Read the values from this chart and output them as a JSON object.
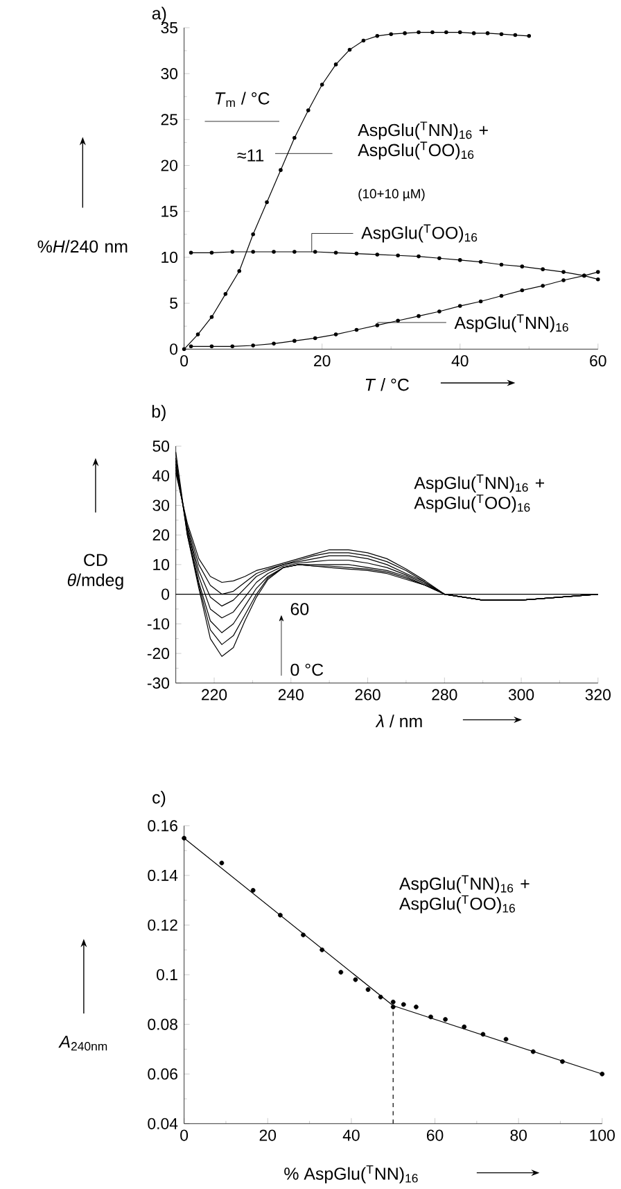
{
  "chart_data": [
    {
      "type": "line",
      "title": "a)",
      "xlabel": "*T* / °C",
      "ylabel": "%*H*/240 nm",
      "xlim": [
        0,
        60
      ],
      "ylim": [
        0,
        35
      ],
      "xticks": [
        0,
        20,
        40,
        60
      ],
      "yticks": [
        0,
        5,
        10,
        15,
        20,
        25,
        30,
        35
      ],
      "marker": "circle",
      "line_style": "solid",
      "legend": "bottom right",
      "annotations": [
        "*T*$_{m}$ / °C",
        "≈11",
        "(10+10 µM)"
      ],
      "series": [
        {
          "name": "AspGlu($^{T}$NN)$_{16}$ + AspGlu($^{T}$OO)$_{16}$",
          "color": "#000000",
          "x": [
            0,
            2,
            4,
            6,
            8,
            10,
            12,
            14,
            16,
            18,
            20,
            22,
            24,
            26,
            28,
            30,
            32,
            34,
            36,
            38,
            40,
            42,
            44,
            46,
            48,
            50
          ],
          "values": [
            0,
            1.6,
            3.5,
            6,
            8.5,
            12.5,
            16,
            19.5,
            23,
            26,
            28.8,
            31,
            32.6,
            33.6,
            34.1,
            34.3,
            34.4,
            34.5,
            34.5,
            34.5,
            34.5,
            34.4,
            34.4,
            34.3,
            34.2,
            34.1
          ]
        },
        {
          "name": "AspGlu($^{T}$OO)$_{16}$",
          "color": "#000000",
          "x": [
            1,
            4,
            7,
            10,
            13,
            16,
            19,
            22,
            25,
            28,
            31,
            34,
            37,
            40,
            43,
            46,
            49,
            52,
            55,
            58,
            60
          ],
          "values": [
            10.5,
            10.5,
            10.6,
            10.6,
            10.6,
            10.6,
            10.6,
            10.5,
            10.4,
            10.3,
            10.2,
            10.1,
            9.9,
            9.7,
            9.5,
            9.2,
            9,
            8.7,
            8.4,
            8,
            7.6
          ]
        },
        {
          "name": "AspGlu($^{T}$NN)$_{16}$",
          "color": "#000000",
          "x": [
            1,
            4,
            7,
            10,
            13,
            16,
            19,
            22,
            25,
            28,
            31,
            34,
            37,
            40,
            43,
            46,
            49,
            52,
            55,
            58,
            60
          ],
          "values": [
            0.3,
            0.3,
            0.3,
            0.4,
            0.6,
            0.9,
            1.2,
            1.6,
            2.1,
            2.6,
            3.1,
            3.6,
            4.1,
            4.7,
            5.2,
            5.8,
            6.4,
            6.9,
            7.5,
            8,
            8.4
          ]
        }
      ]
    },
    {
      "type": "line",
      "title": "b)",
      "xlabel": "*λ* / nm",
      "ylabel": "CD *θ*/mdeg",
      "xlim": [
        210,
        320
      ],
      "ylim": [
        -30,
        50
      ],
      "xticks": [
        220,
        240,
        260,
        280,
        300,
        320
      ],
      "yticks": [
        -30,
        -20,
        -10,
        0,
        10,
        20,
        30,
        40,
        50
      ],
      "line_style": "solid",
      "annotations": [
        "AspGlu($^{T}$NN)$_{16}$ + AspGlu($^{T}$OO)$_{16}$",
        "60",
        "0 °C"
      ],
      "ref_lines": [
        {
          "axis": "y",
          "value": 0
        }
      ],
      "x": [
        210,
        213,
        216,
        219,
        222,
        225,
        228,
        231,
        234,
        238,
        242,
        246,
        250,
        255,
        260,
        265,
        270,
        275,
        280,
        290,
        300,
        310,
        320
      ],
      "series": [
        {
          "color": "#000000",
          "values": [
            48,
            20,
            2,
            -15,
            -21,
            -18,
            -9,
            -1,
            5,
            9,
            10,
            9.5,
            9,
            8.5,
            8,
            7,
            5,
            3,
            0,
            -2,
            -2,
            -1,
            0
          ]
        },
        {
          "color": "#000000",
          "values": [
            46,
            20,
            3,
            -12,
            -17,
            -14,
            -7,
            0,
            5.5,
            9,
            10,
            9.5,
            9.5,
            9,
            8.5,
            7.5,
            5.5,
            3,
            0,
            -2,
            -2,
            -1,
            0
          ]
        },
        {
          "color": "#000000",
          "values": [
            45,
            21,
            4,
            -9,
            -13,
            -10,
            -4,
            2,
            6,
            9,
            10,
            10,
            10,
            10,
            9,
            8,
            6,
            3,
            0,
            -2,
            -2,
            -1,
            0
          ]
        },
        {
          "color": "#000000",
          "values": [
            44,
            22,
            6,
            -5,
            -8,
            -6,
            -1,
            4,
            7,
            9.5,
            10.5,
            11,
            11.5,
            11.5,
            10.5,
            9,
            6.5,
            3.5,
            0,
            -2,
            -2,
            -1,
            0
          ]
        },
        {
          "color": "#000000",
          "values": [
            43,
            22,
            8,
            -1,
            -4,
            -2,
            2,
            6,
            8,
            10,
            11,
            12,
            13,
            13,
            12,
            10,
            7,
            4,
            0,
            -2,
            -2,
            -1,
            0
          ]
        },
        {
          "color": "#000000",
          "values": [
            42,
            23,
            10,
            3,
            0,
            1,
            4,
            7,
            8.5,
            10,
            11.5,
            13,
            14,
            14,
            13,
            11,
            8,
            4,
            0,
            -2,
            -2,
            -1,
            0
          ]
        },
        {
          "color": "#000000",
          "values": [
            41,
            24,
            12,
            6,
            4,
            4.5,
            6,
            8,
            9,
            10.5,
            12,
            13.5,
            15,
            15,
            14,
            12,
            8.5,
            4.5,
            0,
            -2,
            -2,
            -1,
            0
          ]
        }
      ]
    },
    {
      "type": "scatter",
      "title": "c)",
      "xlabel": "% AspGlu($^{T}$NN)$_{16}$",
      "ylabel": "*A*$_{240nm}$",
      "xlim": [
        0,
        100
      ],
      "ylim": [
        0.04,
        0.16
      ],
      "xticks": [
        0,
        20,
        40,
        60,
        80,
        100
      ],
      "yticks": [
        0.04,
        0.06,
        0.08,
        0.1,
        0.12,
        0.14,
        0.16
      ],
      "marker": "circle",
      "annotations": [
        "AspGlu($^{T}$NN)$_{16}$ + AspGlu($^{T}$OO)$_{16}$"
      ],
      "ref_lines": [
        {
          "axis": "x",
          "value": 50,
          "line_style": "dashed"
        }
      ],
      "series": [
        {
          "color": "#000000",
          "x": [
            0,
            9,
            16.5,
            23,
            28.5,
            33,
            37.5,
            41,
            44,
            47,
            50,
            50,
            52.5,
            55.5,
            59,
            62.5,
            67,
            71.5,
            77,
            83.5,
            90.5,
            100
          ],
          "values": [
            0.155,
            0.145,
            0.134,
            0.124,
            0.116,
            0.11,
            0.101,
            0.098,
            0.094,
            0.091,
            0.089,
            0.087,
            0.088,
            0.087,
            0.083,
            0.082,
            0.079,
            0.076,
            0.074,
            0.069,
            0.065,
            0.06
          ]
        },
        {
          "type": "line",
          "marker": "none",
          "color": "#000000",
          "x": [
            0,
            50,
            100
          ],
          "values": [
            0.155,
            0.0875,
            0.06
          ]
        }
      ]
    }
  ]
}
